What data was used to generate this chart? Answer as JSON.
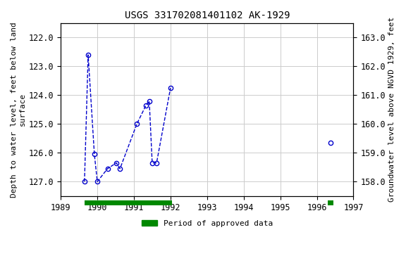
{
  "title": "USGS 331702081401102 AK-1929",
  "segments": [
    {
      "x": [
        1989.65,
        1989.75,
        1989.92,
        1990.0,
        1990.28,
        1990.52,
        1990.62,
        1991.08,
        1991.33,
        1991.42,
        1991.5,
        1991.62,
        1992.0
      ],
      "y": [
        127.0,
        122.6,
        126.05,
        127.0,
        126.55,
        126.35,
        126.55,
        125.0,
        124.35,
        124.2,
        126.35,
        126.35,
        123.75
      ]
    },
    {
      "x": [
        1996.38
      ],
      "y": [
        125.65
      ]
    }
  ],
  "xlim": [
    1989,
    1997
  ],
  "ylim": [
    127.5,
    121.5
  ],
  "y2lim": [
    157.5,
    163.5
  ],
  "xticks": [
    1989,
    1990,
    1991,
    1992,
    1993,
    1994,
    1995,
    1996,
    1997
  ],
  "yticks": [
    122.0,
    123.0,
    124.0,
    125.0,
    126.0,
    127.0
  ],
  "y2ticks": [
    158.0,
    159.0,
    160.0,
    161.0,
    162.0,
    163.0
  ],
  "ylabel": "Depth to water level, feet below land\nsurface",
  "y2label": "Groundwater level above NGVD 1929, feet",
  "line_color": "#0000cc",
  "marker_color": "#0000cc",
  "grid_color": "#cccccc",
  "bg_color": "#ffffff",
  "legend_label": "Period of approved data",
  "legend_color": "#008800",
  "approved_bars": [
    {
      "start": 1989.65,
      "end": 1992.05
    },
    {
      "start": 1996.3,
      "end": 1996.46
    }
  ],
  "title_fontsize": 10,
  "label_fontsize": 8,
  "tick_fontsize": 8.5
}
